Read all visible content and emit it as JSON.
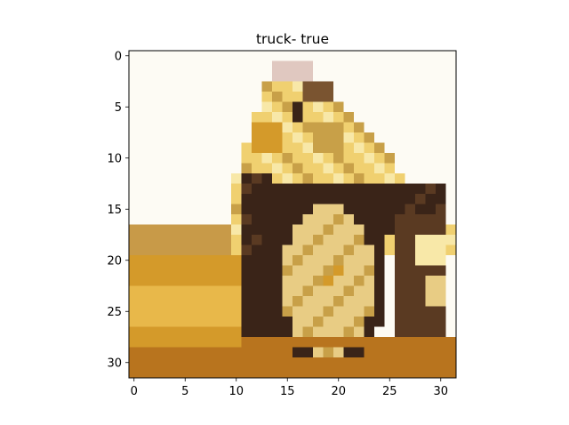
{
  "chart_data": {
    "type": "heatmap",
    "title": "truck- true",
    "xlabel": "",
    "ylabel": "",
    "xlim": [
      -0.5,
      31.5
    ],
    "ylim": [
      31.5,
      -0.5
    ],
    "x_ticks": [
      0,
      5,
      10,
      15,
      20,
      25,
      30
    ],
    "y_ticks": [
      0,
      5,
      10,
      15,
      20,
      25,
      30
    ],
    "grid": false,
    "image": {
      "rows": 32,
      "cols": 32,
      "subject": "truck",
      "palette": {
        "sky": "#fdfbf4",
        "dirt_light": "#e8b84a",
        "dirt_mid": "#d49a2a",
        "dirt_dark": "#b8741e",
        "ground_top": "#c89a48",
        "tire": "#3a2418",
        "tire_inner": "#5a3a22",
        "rim": "#e8cc84",
        "body": "#f0d070",
        "body_light": "#f8e8a8",
        "body_dark": "#c8a048",
        "cab_shadow": "#7a5430",
        "highlight": "#e0c8c0"
      }
    }
  }
}
